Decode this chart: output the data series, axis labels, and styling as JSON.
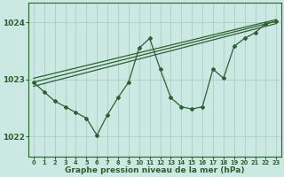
{
  "xlabel": "Graphe pression niveau de la mer (hPa)",
  "hours": [
    0,
    1,
    2,
    3,
    4,
    5,
    6,
    7,
    8,
    9,
    10,
    11,
    12,
    13,
    14,
    15,
    16,
    17,
    18,
    19,
    20,
    21,
    22,
    23
  ],
  "wiggly_x": [
    0,
    1,
    2,
    3,
    4,
    5,
    6,
    7,
    8,
    9,
    10,
    11,
    12,
    13,
    14,
    15,
    16,
    17,
    18,
    19,
    20,
    21,
    22,
    23
  ],
  "wiggly_y": [
    1022.95,
    1022.78,
    1022.62,
    1022.52,
    1022.42,
    1022.32,
    1022.02,
    1022.38,
    1022.68,
    1022.95,
    1023.55,
    1023.72,
    1023.18,
    1022.68,
    1022.52,
    1022.48,
    1022.52,
    1023.18,
    1023.02,
    1023.58,
    1023.72,
    1023.82,
    1023.98,
    1024.02
  ],
  "trend1_x": [
    0,
    23
  ],
  "trend1_y": [
    1022.95,
    1024.02
  ],
  "trend2_x": [
    0,
    23
  ],
  "trend2_y": [
    1023.02,
    1024.05
  ],
  "trend3_x": [
    0,
    23
  ],
  "trend3_y": [
    1022.88,
    1023.98
  ],
  "bg_color": "#cce8e2",
  "grid_color": "#aad0c8",
  "line_color": "#2d6030",
  "yticks": [
    1022,
    1023,
    1024
  ],
  "ylim": [
    1021.65,
    1024.35
  ],
  "xlim": [
    -0.5,
    23.5
  ]
}
